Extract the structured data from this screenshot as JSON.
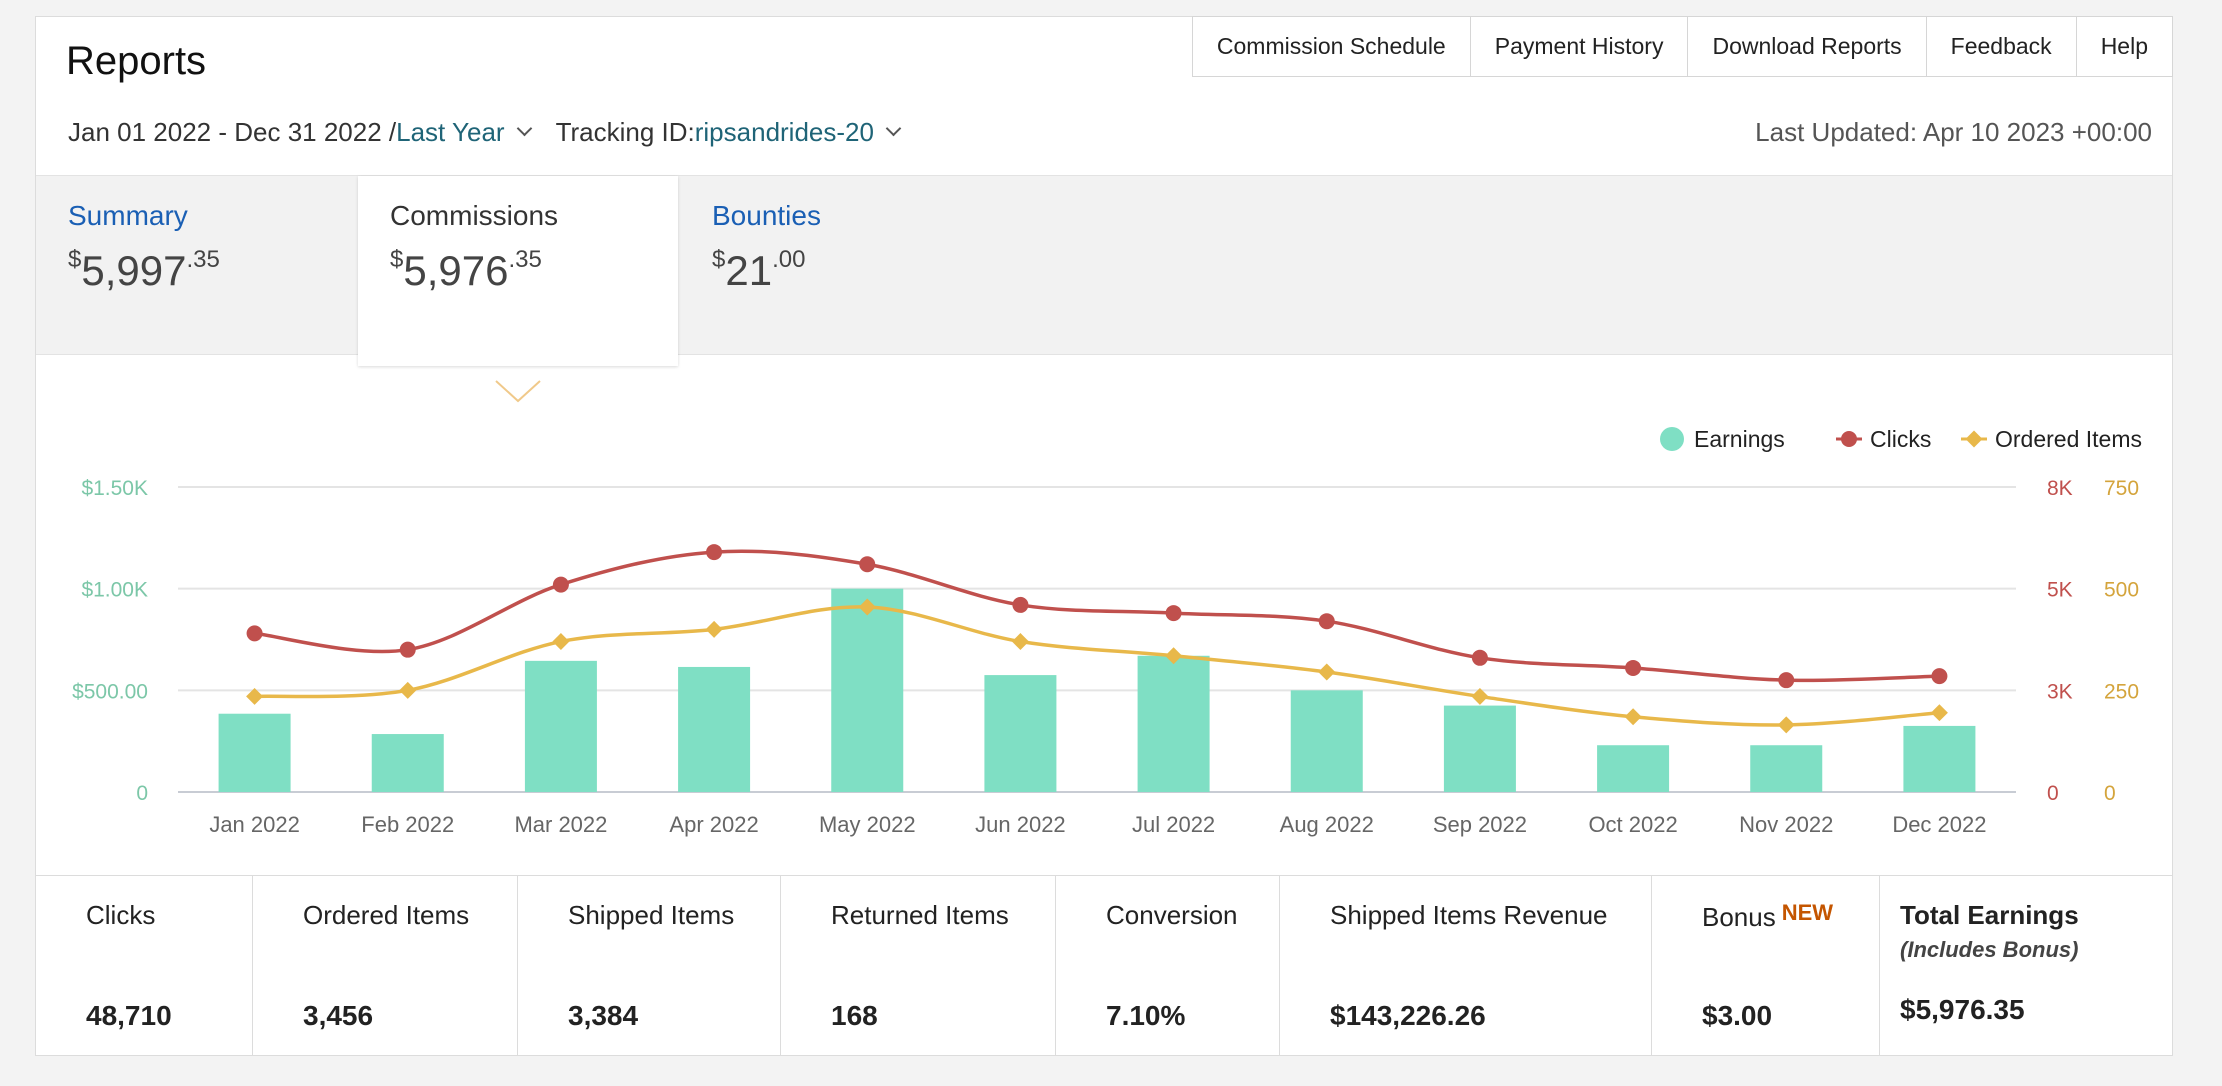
{
  "header": {
    "title": "Reports",
    "nav": [
      "Commission Schedule",
      "Payment History",
      "Download Reports",
      "Feedback",
      "Help"
    ]
  },
  "filters": {
    "date_range": "Jan 01 2022 - Dec 31 2022 / ",
    "period": "Last Year",
    "tracking_label": "Tracking ID: ",
    "tracking_id": "ripsandrides-20",
    "last_updated": "Last Updated: Apr 10 2023 +00:00"
  },
  "tabs": [
    {
      "label": "Summary",
      "currency": "$",
      "whole": "5,997",
      "cents": ".35"
    },
    {
      "label": "Commissions",
      "currency": "$",
      "whole": "5,976",
      "cents": ".35"
    },
    {
      "label": "Bounties",
      "currency": "$",
      "whole": "21",
      "cents": ".00"
    }
  ],
  "chart_data": {
    "type": "bar",
    "categories": [
      "Jan 2022",
      "Feb 2022",
      "Mar 2022",
      "Apr 2022",
      "May 2022",
      "Jun 2022",
      "Jul 2022",
      "Aug 2022",
      "Sep 2022",
      "Oct 2022",
      "Nov 2022",
      "Dec 2022"
    ],
    "series": [
      {
        "name": "Earnings",
        "type": "bar",
        "axis": "left",
        "color": "#7fdfc4",
        "values": [
          385,
          285,
          645,
          615,
          1000,
          575,
          670,
          500,
          425,
          230,
          230,
          325
        ]
      },
      {
        "name": "Clicks",
        "type": "line",
        "axis": "right-1",
        "color": "#c0504d",
        "values": [
          3900,
          3500,
          5100,
          5900,
          5600,
          4600,
          4400,
          4200,
          3300,
          3050,
          2750,
          2850
        ]
      },
      {
        "name": "Ordered Items",
        "type": "line",
        "axis": "right-2",
        "color": "#e8b84a",
        "values": [
          235,
          250,
          370,
          400,
          455,
          370,
          335,
          295,
          235,
          185,
          165,
          195
        ]
      }
    ],
    "left_axis": {
      "ticks": [
        "0",
        "$500.00",
        "$1.00K",
        "$1.50K"
      ],
      "ylim": [
        0,
        1500
      ],
      "color": "#7cc7a8"
    },
    "right_axis_1": {
      "ticks": [
        "0",
        "3K",
        "5K",
        "8K"
      ],
      "ylim": [
        0,
        7500
      ],
      "color": "#c0504d"
    },
    "right_axis_2": {
      "ticks": [
        "0",
        "250",
        "500",
        "750"
      ],
      "ylim": [
        0,
        750
      ],
      "color": "#d4a43c"
    },
    "legend": "top-right",
    "grid": true
  },
  "stats": [
    {
      "label": "Clicks",
      "value": "48,710"
    },
    {
      "label": "Ordered Items",
      "value": "3,456"
    },
    {
      "label": "Shipped Items",
      "value": "3,384"
    },
    {
      "label": "Returned Items",
      "value": "168"
    },
    {
      "label": "Conversion",
      "value": "7.10%"
    },
    {
      "label": "Shipped Items Revenue",
      "value": "$143,226.26"
    },
    {
      "label": "Bonus",
      "badge": "NEW",
      "value": "$3.00"
    },
    {
      "label": "Total Earnings",
      "sub": "(Includes Bonus)",
      "value": "$5,976.35"
    }
  ]
}
